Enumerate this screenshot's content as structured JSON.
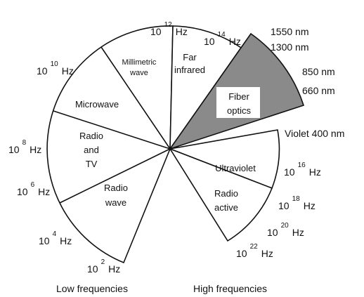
{
  "sectors": [
    {
      "lines": [
        "Millimetric",
        "wave"
      ]
    },
    {
      "lines": [
        "Far",
        "infrared"
      ]
    },
    {
      "lines": [
        "Fiber",
        "optics"
      ]
    },
    {
      "lines": [
        "Microwave"
      ]
    },
    {
      "lines": [
        "Radio",
        "and",
        "TV"
      ]
    },
    {
      "lines": [
        "Radio",
        "wave"
      ]
    },
    {
      "lines": [
        "Ultraviolet"
      ]
    },
    {
      "lines": [
        "Radio",
        "active"
      ]
    }
  ],
  "frequencies": [
    {
      "base": "10",
      "exponent": "12",
      "unit": "Hz"
    },
    {
      "base": "10",
      "exponent": "14",
      "unit": "Hz"
    },
    {
      "base": "10",
      "exponent": "10",
      "unit": "Hz"
    },
    {
      "base": "10",
      "exponent": "8",
      "unit": "Hz"
    },
    {
      "base": "10",
      "exponent": "6",
      "unit": "Hz"
    },
    {
      "base": "10",
      "exponent": "4",
      "unit": "Hz"
    },
    {
      "base": "10",
      "exponent": "2",
      "unit": "Hz"
    },
    {
      "base": "10",
      "exponent": "16",
      "unit": "Hz"
    },
    {
      "base": "10",
      "exponent": "18",
      "unit": "Hz"
    },
    {
      "base": "10",
      "exponent": "20",
      "unit": "Hz"
    },
    {
      "base": "10",
      "exponent": "22",
      "unit": "Hz"
    }
  ],
  "wavelengths": [
    "1550 nm",
    "1300 nm",
    "850 nm",
    "660 nm",
    "Violet 400 nm"
  ],
  "footer": {
    "low": "Low frequencies",
    "high": "High frequencies"
  }
}
